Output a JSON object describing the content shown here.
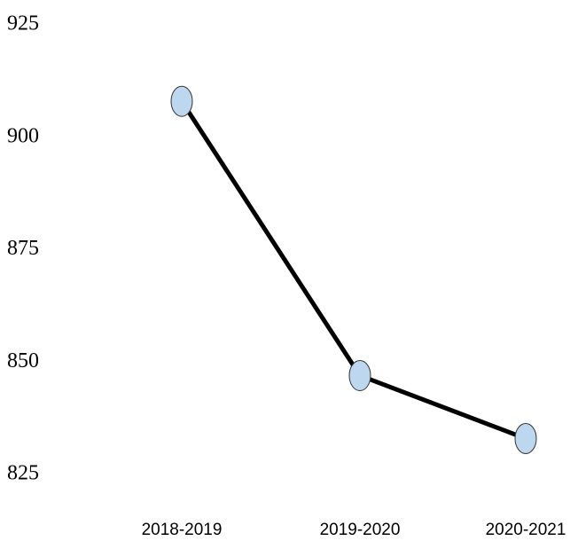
{
  "chart_data": {
    "type": "line",
    "categories": [
      "2018-2019",
      "2019-2020",
      "2020-2021"
    ],
    "series": [
      {
        "color": "#000000",
        "marker_color": "#bdd7ee",
        "values": [
          908,
          847,
          833
        ]
      }
    ],
    "ylim": [
      825,
      925
    ],
    "yticks": [
      825,
      850,
      875,
      900,
      925
    ],
    "grid": false
  }
}
